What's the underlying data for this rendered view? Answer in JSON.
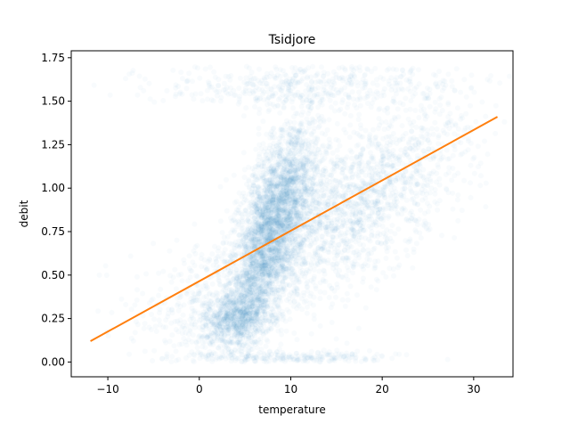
{
  "chart_data": {
    "type": "scatter",
    "title": "Tsidjore",
    "xlabel": "temperature",
    "ylabel": "debit",
    "xlim": [
      -14,
      34.3
    ],
    "ylim": [
      -0.085,
      1.79
    ],
    "xticks": [
      -10,
      0,
      10,
      20,
      30
    ],
    "xtick_labels": [
      "−10",
      "0",
      "10",
      "20",
      "30"
    ],
    "yticks": [
      0.0,
      0.25,
      0.5,
      0.75,
      1.0,
      1.25,
      1.5,
      1.75
    ],
    "ytick_labels": [
      "0.00",
      "0.25",
      "0.50",
      "0.75",
      "1.00",
      "1.25",
      "1.50",
      "1.75"
    ],
    "grid": false,
    "series": [
      {
        "kind": "scatter",
        "color": "#1f77b4",
        "point_alpha": 0.03,
        "clusters": [
          {
            "cx": 7.5,
            "cy": 0.7,
            "sx": 2.3,
            "sy": 0.3,
            "n": 2600,
            "rho": 0.7
          },
          {
            "cx": 4.0,
            "cy": 0.25,
            "sx": 2.0,
            "sy": 0.08,
            "n": 700,
            "rho": 0.2
          },
          {
            "cx": 17.0,
            "cy": 0.9,
            "sx": 6.0,
            "sy": 0.28,
            "n": 1800,
            "rho": 0.65
          },
          {
            "cx": 9.0,
            "cy": 0.95,
            "sx": 2.2,
            "sy": 0.25,
            "n": 900,
            "rho": 0.3
          },
          {
            "cx": 12.0,
            "cy": 1.6,
            "sx": 8.0,
            "sy": 0.07,
            "n": 500,
            "rho": 0.1
          },
          {
            "cx": 10.0,
            "cy": 0.02,
            "sx": 6.0,
            "sy": 0.02,
            "n": 250,
            "rho": 0.0
          },
          {
            "cx": 2.0,
            "cy": 0.35,
            "sx": 5.0,
            "sy": 0.2,
            "n": 500,
            "rho": 0.3
          }
        ]
      },
      {
        "kind": "line",
        "color": "#ff7f0e",
        "x": [
          -11.9,
          32.6
        ],
        "y": [
          0.12,
          1.41
        ]
      }
    ]
  }
}
